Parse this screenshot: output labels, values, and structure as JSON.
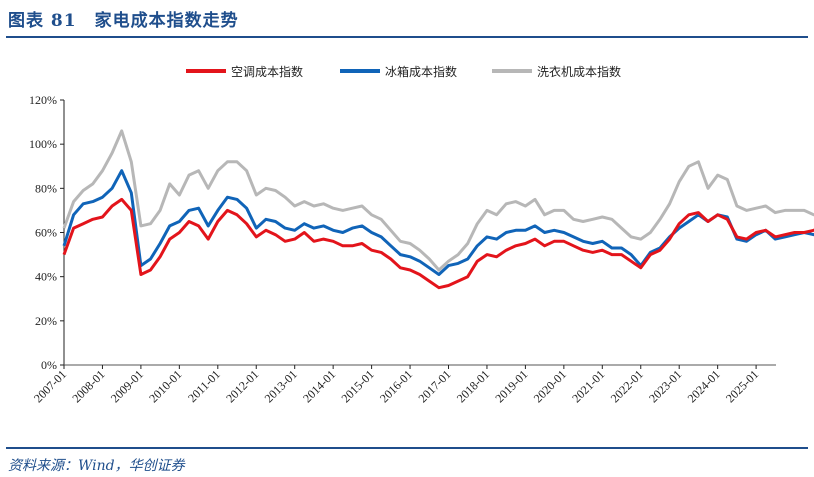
{
  "header": {
    "title": "图表 81　家电成本指数走势"
  },
  "footer": {
    "source": "资料来源：Wind，华创证券"
  },
  "legend": [
    {
      "label": "空调成本指数",
      "color": "#e3141b"
    },
    {
      "label": "冰箱成本指数",
      "color": "#1064b8"
    },
    {
      "label": "洗衣机成本指数",
      "color": "#b7b7b7"
    }
  ],
  "chart_data": {
    "type": "line",
    "title": "家电成本指数走势",
    "xlabel": "",
    "ylabel": "",
    "ylim": [
      0,
      120
    ],
    "y_ticks": [
      "0%",
      "20%",
      "40%",
      "60%",
      "80%",
      "100%",
      "120%"
    ],
    "x_ticks": [
      "2007-01",
      "2008-01",
      "2009-01",
      "2010-01",
      "2011-01",
      "2012-01",
      "2013-01",
      "2014-01",
      "2015-01",
      "2016-01",
      "2017-01",
      "2018-01",
      "2019-01",
      "2020-01",
      "2021-01",
      "2022-01",
      "2023-01",
      "2024-01",
      "2025-01"
    ],
    "legend_position": "top",
    "grid": false,
    "x_start": "2007-01",
    "x_step": "quarter",
    "series": [
      {
        "name": "空调成本指数",
        "color": "#e3141b",
        "values": [
          50,
          62,
          64,
          66,
          67,
          72,
          75,
          70,
          41,
          43,
          49,
          57,
          60,
          65,
          63,
          57,
          65,
          70,
          68,
          64,
          58,
          61,
          59,
          56,
          57,
          60,
          56,
          57,
          56,
          54,
          54,
          55,
          52,
          51,
          48,
          44,
          43,
          41,
          38,
          35,
          36,
          38,
          40,
          47,
          50,
          49,
          52,
          54,
          55,
          57,
          54,
          56,
          56,
          54,
          52,
          51,
          52,
          50,
          50,
          47,
          44,
          50,
          52,
          57,
          64,
          68,
          69,
          65,
          68,
          66,
          58,
          57,
          60,
          61,
          58,
          59,
          60,
          60,
          61,
          64,
          60,
          59,
          58
        ]
      },
      {
        "name": "冰箱成本指数",
        "color": "#1064b8",
        "values": [
          54,
          68,
          73,
          74,
          76,
          80,
          88,
          78,
          45,
          48,
          55,
          63,
          65,
          70,
          71,
          63,
          70,
          76,
          75,
          71,
          62,
          66,
          65,
          62,
          61,
          64,
          62,
          63,
          61,
          60,
          62,
          63,
          60,
          58,
          54,
          50,
          49,
          47,
          44,
          41,
          45,
          46,
          48,
          54,
          58,
          57,
          60,
          61,
          61,
          63,
          60,
          61,
          60,
          58,
          56,
          55,
          56,
          53,
          53,
          50,
          45,
          51,
          53,
          58,
          62,
          65,
          68,
          65,
          68,
          67,
          57,
          56,
          59,
          61,
          57,
          58,
          59,
          60,
          59,
          62,
          58,
          57,
          55
        ]
      },
      {
        "name": "洗衣机成本指数",
        "color": "#b7b7b7",
        "values": [
          62,
          74,
          79,
          82,
          88,
          96,
          106,
          92,
          63,
          64,
          70,
          82,
          77,
          86,
          88,
          80,
          88,
          92,
          92,
          88,
          77,
          80,
          79,
          76,
          72,
          74,
          72,
          73,
          71,
          70,
          71,
          72,
          68,
          66,
          61,
          56,
          55,
          52,
          48,
          43,
          47,
          50,
          55,
          64,
          70,
          68,
          73,
          74,
          72,
          75,
          68,
          70,
          70,
          66,
          65,
          66,
          67,
          66,
          62,
          58,
          57,
          60,
          66,
          73,
          83,
          90,
          92,
          80,
          86,
          84,
          72,
          70,
          71,
          72,
          69,
          70,
          70,
          70,
          68,
          68,
          67,
          64,
          61
        ]
      }
    ]
  }
}
